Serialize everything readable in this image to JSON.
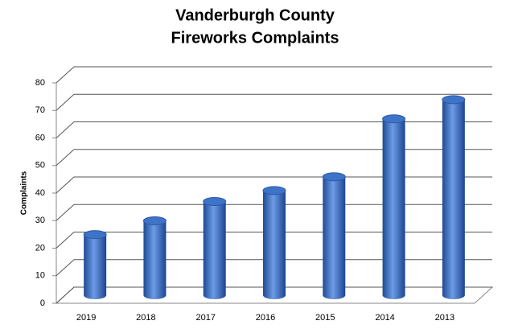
{
  "chart_data": {
    "type": "bar",
    "title": [
      "Vanderburgh County",
      "Fireworks Complaints"
    ],
    "y_label": "Complaints",
    "categories": [
      "2019",
      "2018",
      "2017",
      "2016",
      "2015",
      "2014",
      "2013"
    ],
    "values": [
      22,
      27,
      34,
      38,
      43,
      64,
      71
    ],
    "color": "#3f73c8",
    "ylim": [
      0,
      80
    ],
    "yticks": [
      0,
      10,
      20,
      30,
      40,
      50,
      60,
      70,
      80
    ],
    "grid": true
  }
}
